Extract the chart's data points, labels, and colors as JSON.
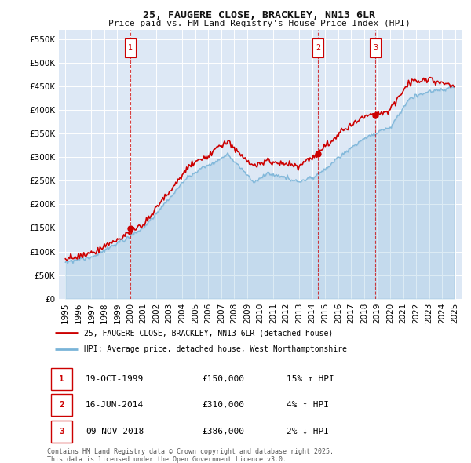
{
  "title1": "25, FAUGERE CLOSE, BRACKLEY, NN13 6LR",
  "title2": "Price paid vs. HM Land Registry's House Price Index (HPI)",
  "legend_line1": "25, FAUGERE CLOSE, BRACKLEY, NN13 6LR (detached house)",
  "legend_line2": "HPI: Average price, detached house, West Northamptonshire",
  "transactions": [
    {
      "num": 1,
      "date": "19-OCT-1999",
      "price": 150000,
      "pct": "15%",
      "dir": "↑",
      "x": 2000.0
    },
    {
      "num": 2,
      "date": "16-JUN-2014",
      "price": 310000,
      "pct": "4%",
      "dir": "↑",
      "x": 2014.45
    },
    {
      "num": 3,
      "date": "09-NOV-2018",
      "price": 386000,
      "pct": "2%",
      "dir": "↓",
      "x": 2018.85
    }
  ],
  "footnote1": "Contains HM Land Registry data © Crown copyright and database right 2025.",
  "footnote2": "This data is licensed under the Open Government Licence v3.0.",
  "hpi_color": "#7ab4d8",
  "price_color": "#cc0000",
  "vline_color": "#cc0000",
  "bg_color": "#dde8f5",
  "grid_color": "#ffffff",
  "ylim": [
    0,
    570000
  ],
  "yticks": [
    0,
    50000,
    100000,
    150000,
    200000,
    250000,
    300000,
    350000,
    400000,
    450000,
    500000,
    550000
  ],
  "xlim_start": 1994.5,
  "xlim_end": 2025.5
}
